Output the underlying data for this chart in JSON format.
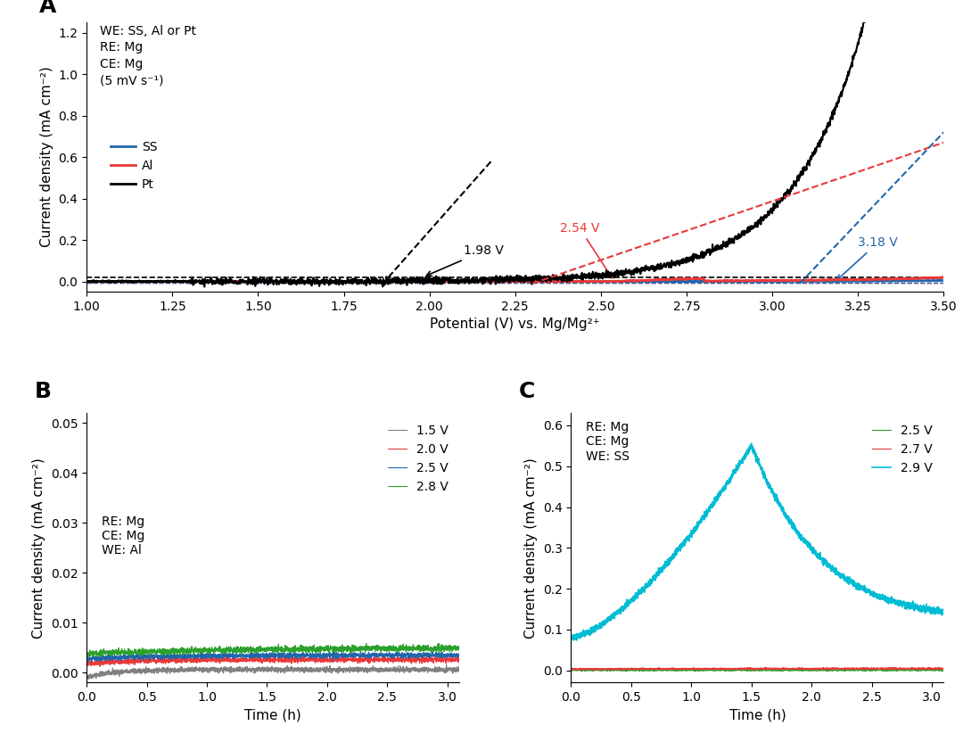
{
  "panel_A": {
    "xlim": [
      1.0,
      3.5
    ],
    "ylim": [
      -0.05,
      1.25
    ],
    "xlabel": "Potential (V) vs. Mg/Mg²⁺",
    "ylabel": "Current density (mA cm⁻²)",
    "info_text": "WE: SS, Al or Pt\nRE: Mg\nCE: Mg\n(5 mV s⁻¹)",
    "legend_SS": "SS",
    "legend_Al": "Al",
    "legend_Pt": "Pt",
    "color_SS": "#2166ac",
    "color_Al": "#e8393a",
    "color_Pt": "#000000",
    "label_Pt": "1.98 V",
    "label_Al": "2.54 V",
    "label_SS": "3.18 V",
    "Pt_onset": 1.98,
    "Al_onset": 2.54,
    "SS_onset": 3.18
  },
  "panel_B": {
    "xlim": [
      0,
      3.1
    ],
    "ylim": [
      -0.002,
      0.052
    ],
    "xlabel": "Time (h)",
    "ylabel": "Current density (mA cm⁻²)",
    "annotation_text": "RE: Mg\nCE: Mg\nWE: Al",
    "color_15": "#808080",
    "color_20": "#e8393a",
    "color_25": "#2166ac",
    "color_28": "#2ca02c",
    "label_15": "1.5 V",
    "label_20": "2.0 V",
    "label_25": "2.5 V",
    "label_28": "2.8 V"
  },
  "panel_C": {
    "xlim": [
      0,
      3.1
    ],
    "ylim": [
      -0.03,
      0.63
    ],
    "xlabel": "Time (h)",
    "ylabel": "Current density (mA cm⁻²)",
    "annotation_text": "RE: Mg\nCE: Mg\nWE: SS",
    "color_25": "#2ca02c",
    "color_27": "#e8393a",
    "color_29": "#00bcd4",
    "label_25": "2.5 V",
    "label_27": "2.7 V",
    "label_29": "2.9 V"
  },
  "panel_label_fontsize": 18,
  "axis_label_fontsize": 11,
  "tick_fontsize": 10,
  "legend_fontsize": 10,
  "annotation_fontsize": 10
}
